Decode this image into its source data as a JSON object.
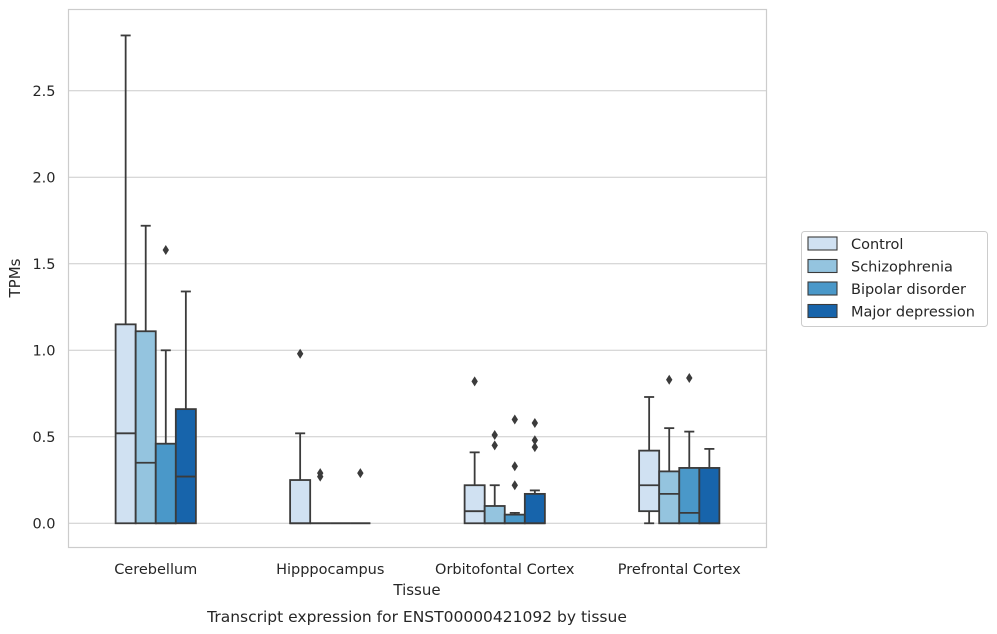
{
  "chart_data": {
    "type": "box",
    "xlabel": "Tissue",
    "ylabel": "TPMs",
    "caption": "Transcript expression for ENST00000421092 by tissue",
    "ylim": [
      -0.14,
      2.97
    ],
    "yticks": [
      "0.0",
      "0.5",
      "1.0",
      "1.5",
      "2.0",
      "2.5"
    ],
    "ytick_values": [
      0.0,
      0.5,
      1.0,
      1.5,
      2.0,
      2.5
    ],
    "grid": "horizontal",
    "legend_position": "right",
    "categories": [
      "Cerebellum",
      "Hipppocampus",
      "Orbitofontal Cortex",
      "Prefrontal Cortex"
    ],
    "series": [
      {
        "name": "Control",
        "color": "#d0e1f2",
        "boxes": [
          {
            "whislo": 0.0,
            "q1": 0.0,
            "med": 0.52,
            "q3": 1.15,
            "whishi": 2.82,
            "fliers": []
          },
          {
            "whislo": 0.0,
            "q1": 0.0,
            "med": 0.0,
            "q3": 0.25,
            "whishi": 0.52,
            "fliers": [
              0.98
            ]
          },
          {
            "whislo": 0.0,
            "q1": 0.0,
            "med": 0.07,
            "q3": 0.22,
            "whishi": 0.41,
            "fliers": [
              0.82
            ]
          },
          {
            "whislo": 0.0,
            "q1": 0.07,
            "med": 0.22,
            "q3": 0.42,
            "whishi": 0.73,
            "fliers": []
          }
        ]
      },
      {
        "name": "Schizophrenia",
        "color": "#94c4df",
        "boxes": [
          {
            "whislo": 0.0,
            "q1": 0.0,
            "med": 0.35,
            "q3": 1.11,
            "whishi": 1.72,
            "fliers": []
          },
          {
            "whislo": 0.0,
            "q1": 0.0,
            "med": 0.0,
            "q3": 0.0,
            "whishi": 0.0,
            "fliers": [
              0.27,
              0.29
            ]
          },
          {
            "whislo": 0.0,
            "q1": 0.0,
            "med": 0.0,
            "q3": 0.1,
            "whishi": 0.22,
            "fliers": [
              0.45,
              0.51
            ]
          },
          {
            "whislo": 0.0,
            "q1": 0.0,
            "med": 0.17,
            "q3": 0.3,
            "whishi": 0.55,
            "fliers": [
              0.83
            ]
          }
        ]
      },
      {
        "name": "Bipolar disorder",
        "color": "#4a98c9",
        "boxes": [
          {
            "whislo": 0.0,
            "q1": 0.0,
            "med": 0.0,
            "q3": 0.46,
            "whishi": 1.0,
            "fliers": [
              1.58
            ]
          },
          {
            "whislo": 0.0,
            "q1": 0.0,
            "med": 0.0,
            "q3": 0.0,
            "whishi": 0.0,
            "fliers": []
          },
          {
            "whislo": 0.0,
            "q1": 0.0,
            "med": 0.0,
            "q3": 0.05,
            "whishi": 0.06,
            "fliers": [
              0.22,
              0.33,
              0.6
            ]
          },
          {
            "whislo": 0.0,
            "q1": 0.0,
            "med": 0.06,
            "q3": 0.32,
            "whishi": 0.53,
            "fliers": [
              0.84
            ]
          }
        ]
      },
      {
        "name": "Major depression",
        "color": "#1764ab",
        "boxes": [
          {
            "whislo": 0.0,
            "q1": 0.0,
            "med": 0.27,
            "q3": 0.66,
            "whishi": 1.34,
            "fliers": []
          },
          {
            "whislo": 0.0,
            "q1": 0.0,
            "med": 0.0,
            "q3": 0.0,
            "whishi": 0.0,
            "fliers": [
              0.29
            ]
          },
          {
            "whislo": 0.0,
            "q1": 0.0,
            "med": 0.0,
            "q3": 0.17,
            "whishi": 0.19,
            "fliers": [
              0.44,
              0.48,
              0.58
            ]
          },
          {
            "whislo": 0.0,
            "q1": 0.0,
            "med": 0.0,
            "q3": 0.32,
            "whishi": 0.43,
            "fliers": []
          }
        ]
      }
    ]
  }
}
